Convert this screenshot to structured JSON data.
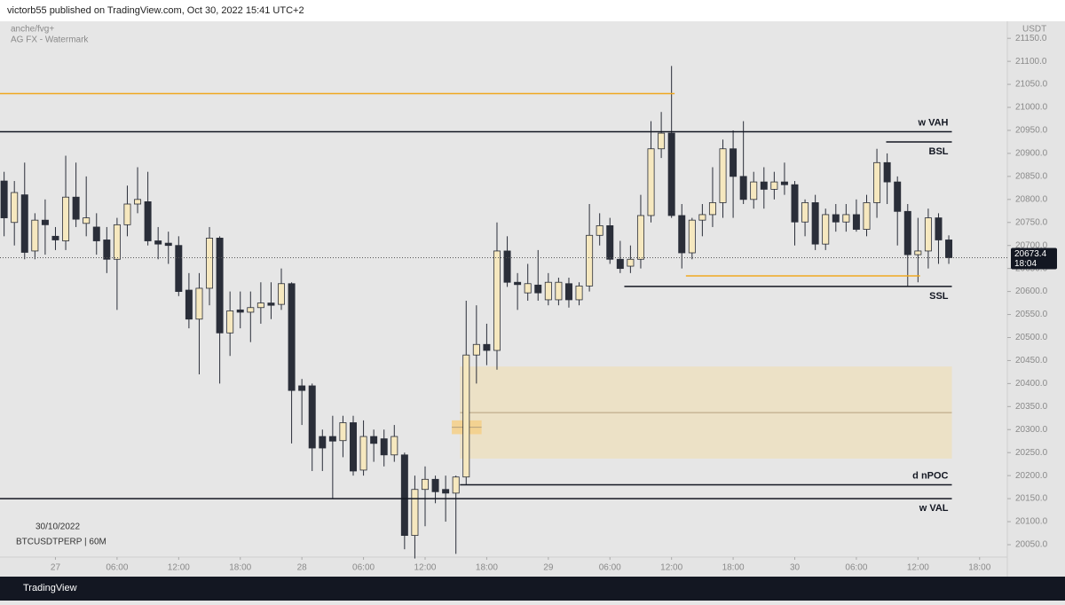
{
  "header": {
    "publisher": "victorb55 published on TradingView.com, Oct 30, 2022 15:41 UTC+2"
  },
  "chart_data": {
    "type": "candlestick",
    "indicators": [
      "anche/fvg+",
      "AG FX - Watermark"
    ],
    "currency": "USDT",
    "date": "30/10/2022",
    "symbol": "BTCUSDTPERP | 60M",
    "open": [
      20840,
      20750,
      20810,
      20688,
      20755,
      20720,
      20710,
      20805,
      20748,
      20740,
      20712,
      20670,
      20745,
      20790,
      20795,
      20710,
      20705,
      20700,
      20603,
      20540,
      20607,
      20716,
      20510,
      20560,
      20555,
      20565,
      20575,
      20572,
      20617,
      20395,
      20395,
      20285,
      20285,
      20276,
      20315,
      20212,
      20285,
      20280,
      20245,
      20245,
      20070,
      20170,
      20192,
      20170,
      20162,
      20197,
      20462,
      20485,
      20472,
      20688,
      20620,
      20597,
      20614,
      20582,
      20582,
      20617,
      20582,
      20612,
      20722,
      20743,
      20670,
      20655,
      20670,
      20765,
      20910,
      20944,
      20765,
      20684,
      20755,
      20767,
      20793,
      20910,
      20850,
      20800,
      20838,
      20822,
      20838,
      20832,
      20751,
      20793,
      20703,
      20767,
      20751,
      20767,
      20735,
      20793,
      20880,
      20838,
      20774,
      20680,
      20688,
      20760,
      20712
    ],
    "high": [
      20860,
      20840,
      20880,
      20770,
      20800,
      20740,
      20895,
      20880,
      20850,
      20770,
      20740,
      20760,
      20830,
      20870,
      20860,
      20740,
      20730,
      20720,
      20640,
      20640,
      20740,
      20720,
      20600,
      20600,
      20600,
      20620,
      20620,
      20650,
      20620,
      20410,
      20400,
      20300,
      20330,
      20330,
      20330,
      20320,
      20300,
      20300,
      20310,
      20250,
      20200,
      20220,
      20200,
      20200,
      20200,
      20580,
      20570,
      20530,
      20750,
      20720,
      20640,
      20660,
      20690,
      20640,
      20630,
      20630,
      20620,
      20790,
      20770,
      20760,
      20710,
      20700,
      20810,
      20970,
      20990,
      21090,
      20790,
      20760,
      20790,
      20870,
      20930,
      20950,
      20970,
      20860,
      20870,
      20860,
      20880,
      20840,
      20800,
      20810,
      20780,
      20790,
      20790,
      20800,
      20810,
      20910,
      20900,
      20850,
      20790,
      20760,
      20780,
      20770,
      20722
    ],
    "low": [
      20720,
      20700,
      20670,
      20670,
      20680,
      20690,
      20690,
      20740,
      20720,
      20680,
      20640,
      20560,
      20720,
      20770,
      20700,
      20670,
      20660,
      20590,
      20520,
      20420,
      20570,
      20400,
      20460,
      20520,
      20490,
      20530,
      20540,
      20560,
      20270,
      20310,
      20210,
      20210,
      20150,
      20240,
      20200,
      20200,
      20230,
      20220,
      20230,
      20040,
      20020,
      20090,
      20140,
      20100,
      20030,
      20180,
      20400,
      20440,
      20430,
      20610,
      20560,
      20580,
      20580,
      20570,
      20570,
      20565,
      20570,
      20600,
      20700,
      20660,
      20640,
      20640,
      20650,
      20750,
      20890,
      20760,
      20650,
      20670,
      20720,
      20740,
      20760,
      20760,
      20790,
      20780,
      20780,
      20800,
      20810,
      20700,
      20720,
      20690,
      20690,
      20730,
      20730,
      20730,
      20720,
      20760,
      20790,
      20700,
      20610,
      20620,
      20650,
      20660,
      20660
    ],
    "close": [
      20760,
      20815,
      20685,
      20755,
      20745,
      20712,
      20805,
      20757,
      20760,
      20710,
      20670,
      20745,
      20790,
      20800,
      20710,
      20703,
      20700,
      20600,
      20540,
      20607,
      20716,
      20510,
      20558,
      20555,
      20565,
      20575,
      20570,
      20617,
      20385,
      20385,
      20260,
      20260,
      20275,
      20315,
      20210,
      20285,
      20270,
      20245,
      20285,
      20070,
      20170,
      20192,
      20165,
      20162,
      20197,
      20462,
      20485,
      20472,
      20688,
      20620,
      20615,
      20617,
      20597,
      20620,
      20620,
      20582,
      20612,
      20722,
      20743,
      20670,
      20650,
      20670,
      20765,
      20910,
      20944,
      20765,
      20684,
      20755,
      20767,
      20793,
      20910,
      20850,
      20800,
      20838,
      20822,
      20838,
      20832,
      20751,
      20793,
      20703,
      20767,
      20751,
      20767,
      20735,
      20793,
      20880,
      20838,
      20774,
      20680,
      20688,
      20760,
      20712,
      20673.4
    ],
    "up_color": "#f6e8bf",
    "down_color": "#2a2e39",
    "last_price": 20673.4,
    "countdown": "18:04",
    "xlim": [
      -0.4,
      97.7
    ],
    "ylim": [
      20023,
      21187
    ],
    "xticks": [
      {
        "value": 5,
        "label": "27"
      },
      {
        "value": 11,
        "label": "06:00"
      },
      {
        "value": 17,
        "label": "12:00"
      },
      {
        "value": 23,
        "label": "18:00"
      },
      {
        "value": 29,
        "label": "28"
      },
      {
        "value": 35,
        "label": "06:00"
      },
      {
        "value": 41,
        "label": "12:00"
      },
      {
        "value": 47,
        "label": "18:00"
      },
      {
        "value": 53,
        "label": "29"
      },
      {
        "value": 59,
        "label": "06:00"
      },
      {
        "value": 65,
        "label": "12:00"
      },
      {
        "value": 71,
        "label": "18:00"
      },
      {
        "value": 77,
        "label": "30"
      },
      {
        "value": 83,
        "label": "06:00"
      },
      {
        "value": 89,
        "label": "12:00"
      },
      {
        "value": 95,
        "label": "18:00"
      }
    ],
    "yticks": [
      {
        "value": 21150,
        "label": "21150.0"
      },
      {
        "value": 21100,
        "label": "21100.0"
      },
      {
        "value": 21050,
        "label": "21050.0"
      },
      {
        "value": 21000,
        "label": "21000.0"
      },
      {
        "value": 20950,
        "label": "20950.0"
      },
      {
        "value": 20900,
        "label": "20900.0"
      },
      {
        "value": 20850,
        "label": "20850.0"
      },
      {
        "value": 20800,
        "label": "20800.0"
      },
      {
        "value": 20750,
        "label": "20750.0"
      },
      {
        "value": 20700,
        "label": "20700.0"
      },
      {
        "value": 20650,
        "label": "20650.0"
      },
      {
        "value": 20600,
        "label": "20600.0"
      },
      {
        "value": 20550,
        "label": "20550.0"
      },
      {
        "value": 20500,
        "label": "20500.0"
      },
      {
        "value": 20450,
        "label": "20450.0"
      },
      {
        "value": 20400,
        "label": "20400.0"
      },
      {
        "value": 20350,
        "label": "20350.0"
      },
      {
        "value": 20300,
        "label": "20300.0"
      },
      {
        "value": 20250,
        "label": "20250.0"
      },
      {
        "value": 20200,
        "label": "20200.0"
      },
      {
        "value": 20150,
        "label": "20150.0"
      },
      {
        "value": 20100,
        "label": "20100.0"
      },
      {
        "value": 20050,
        "label": "20050.0"
      }
    ],
    "zones": [
      {
        "from": 44.4,
        "to": 92.3,
        "low": 20237,
        "high": 20437,
        "mid": 20337,
        "color": "#ecdfbf"
      },
      {
        "from": 43.6,
        "to": 46.5,
        "low": 20290,
        "high": 20320,
        "mid": 20305,
        "color": "#f5cf87"
      }
    ],
    "levels": [
      {
        "price": 21030,
        "from": -0.4,
        "to": 65.3,
        "color": "#f0a820"
      },
      {
        "label": "w VAH",
        "price": 20947,
        "from": -0.4,
        "to": 92.3,
        "color": "#131722",
        "label_position": "above"
      },
      {
        "label": "BSL",
        "price": 20925,
        "from": 85.9,
        "to": 92.3,
        "color": "#131722",
        "label_position": "below"
      },
      {
        "label": "SSL",
        "price": 20611,
        "from": 60.4,
        "to": 92.3,
        "color": "#131722",
        "label_position": "below"
      },
      {
        "price": 20634,
        "from": 66.4,
        "to": 89.2,
        "color": "#f0a820"
      },
      {
        "label": "d nPOC",
        "price": 20180,
        "from": 44.4,
        "to": 92.3,
        "color": "#131722",
        "label_position": "above"
      },
      {
        "label": "w VAL",
        "price": 20150,
        "from": -0.4,
        "to": 92.3,
        "color": "#131722",
        "label_position": "below"
      }
    ]
  },
  "footer": {
    "brand": "TradingView"
  }
}
